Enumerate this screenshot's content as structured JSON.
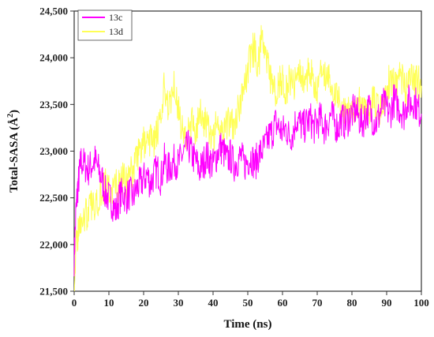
{
  "chart_data": {
    "type": "line",
    "xlabel": "Time (ns)",
    "ylabel": "Total-SASA (Å²)",
    "ylabel_main": "Total-SASA (",
    "ylabel_unit": "Å",
    "ylabel_sup": "2",
    "ylabel_close": ")",
    "xlim": [
      0,
      100
    ],
    "ylim": [
      21500,
      24500
    ],
    "xticks": [
      0,
      10,
      20,
      30,
      40,
      50,
      60,
      70,
      80,
      90,
      100
    ],
    "xtick_labels": [
      "0",
      "10",
      "20",
      "30",
      "40",
      "50",
      "60",
      "70",
      "80",
      "90",
      "100"
    ],
    "yticks": [
      21500,
      22000,
      22500,
      23000,
      23500,
      24000,
      24500
    ],
    "ytick_labels": [
      "21,500",
      "22,000",
      "22,500",
      "23,000",
      "23,500",
      "24,000",
      "24,500"
    ],
    "grid": false,
    "legend_position": "top-left",
    "series": [
      {
        "name": "13c",
        "color": "#ff00ff",
        "x": [
          0,
          0.5,
          1,
          1.5,
          2,
          3,
          4,
          5,
          6,
          7,
          8,
          9,
          10,
          11,
          12,
          13,
          14,
          15,
          16,
          17,
          18,
          19,
          20,
          21,
          22,
          23,
          24,
          25,
          26,
          27,
          28,
          29,
          30,
          31,
          32,
          33,
          34,
          35,
          36,
          37,
          38,
          39,
          40,
          41,
          42,
          43,
          44,
          45,
          46,
          47,
          48,
          49,
          50,
          51,
          52,
          53,
          54,
          55,
          56,
          57,
          58,
          59,
          60,
          61,
          62,
          63,
          64,
          65,
          66,
          67,
          68,
          69,
          70,
          71,
          72,
          73,
          74,
          75,
          76,
          77,
          78,
          79,
          80,
          81,
          82,
          83,
          84,
          85,
          86,
          87,
          88,
          89,
          90,
          91,
          92,
          93,
          94,
          95,
          96,
          97,
          98,
          99,
          100
        ],
        "values": [
          21850,
          22350,
          22600,
          22750,
          22900,
          22850,
          22800,
          22850,
          22900,
          22800,
          22700,
          22550,
          22500,
          22450,
          22350,
          22500,
          22550,
          22500,
          22550,
          22500,
          22600,
          22650,
          22700,
          22750,
          22650,
          22750,
          22800,
          22700,
          22900,
          22800,
          22850,
          22900,
          22850,
          22950,
          23000,
          23050,
          22950,
          22900,
          22800,
          22850,
          22950,
          22900,
          22850,
          22950,
          23050,
          23000,
          22900,
          22950,
          22850,
          22900,
          22950,
          22850,
          22900,
          22950,
          22850,
          22950,
          23000,
          23050,
          23150,
          23200,
          23300,
          23250,
          23200,
          23250,
          23150,
          23200,
          23350,
          23300,
          23250,
          23300,
          23350,
          23250,
          23300,
          23350,
          23250,
          23300,
          23400,
          23300,
          23250,
          23350,
          23300,
          23350,
          23400,
          23450,
          23350,
          23300,
          23400,
          23450,
          23350,
          23300,
          23400,
          23500,
          23450,
          23400,
          23550,
          23500,
          23450,
          23400,
          23550,
          23500,
          23550,
          23450,
          23400
        ]
      },
      {
        "name": "13d",
        "color": "#ffff55",
        "x": [
          0,
          0.5,
          1,
          1.5,
          2,
          3,
          4,
          5,
          6,
          7,
          8,
          9,
          10,
          11,
          12,
          13,
          14,
          15,
          16,
          17,
          18,
          19,
          20,
          21,
          22,
          23,
          24,
          25,
          26,
          27,
          28,
          29,
          30,
          31,
          32,
          33,
          34,
          35,
          36,
          37,
          38,
          39,
          40,
          41,
          42,
          43,
          44,
          45,
          46,
          47,
          48,
          49,
          50,
          51,
          52,
          53,
          54,
          55,
          56,
          57,
          58,
          59,
          60,
          61,
          62,
          63,
          64,
          65,
          66,
          67,
          68,
          69,
          70,
          71,
          72,
          73,
          74,
          75,
          76,
          77,
          78,
          79,
          80,
          81,
          82,
          83,
          84,
          85,
          86,
          87,
          88,
          89,
          90,
          91,
          92,
          93,
          94,
          95,
          96,
          97,
          98,
          99,
          100
        ],
        "values": [
          21550,
          21950,
          22100,
          22200,
          22250,
          22300,
          22350,
          22400,
          22450,
          22500,
          22600,
          22650,
          22600,
          22550,
          22650,
          22600,
          22700,
          22650,
          22750,
          22800,
          22950,
          23000,
          23100,
          23050,
          23150,
          23100,
          23200,
          23300,
          23700,
          23500,
          23600,
          23750,
          23450,
          23250,
          23150,
          23200,
          23300,
          23250,
          23350,
          23400,
          23250,
          23200,
          23150,
          23300,
          23250,
          23200,
          23300,
          23350,
          23300,
          23450,
          23500,
          23700,
          23850,
          24050,
          24100,
          23900,
          24200,
          24050,
          23850,
          23700,
          23650,
          23700,
          23800,
          23650,
          23750,
          23700,
          23800,
          23900,
          23750,
          23800,
          23850,
          23700,
          23650,
          23800,
          23750,
          23850,
          23700,
          23650,
          23550,
          23450,
          23500,
          23400,
          23500,
          23450,
          23550,
          23500,
          23400,
          23450,
          23550,
          23500,
          23450,
          23550,
          23700,
          23750,
          23700,
          23650,
          23800,
          23700,
          23650,
          23800,
          23700,
          23750,
          23700
        ]
      }
    ]
  }
}
